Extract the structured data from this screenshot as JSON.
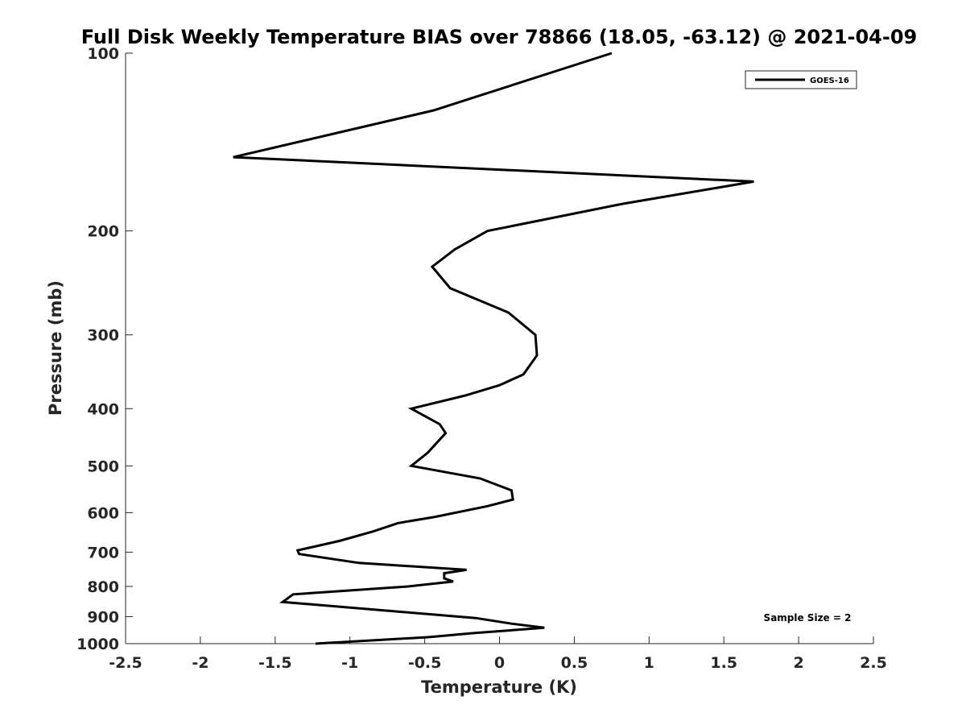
{
  "chart_data": {
    "type": "line",
    "title": "Full Disk Weekly Temperature BIAS over 78866 (18.05, -63.12) @ 2021-04-09",
    "xlabel": "Temperature (K)",
    "ylabel": "Pressure (mb)",
    "xlim": [
      -2.5,
      2.5
    ],
    "ylim": [
      100,
      1000
    ],
    "y_scale": "log",
    "y_reversed": true,
    "x_ticks": [
      -2.5,
      -2,
      -1.5,
      -1,
      -0.5,
      0,
      0.5,
      1,
      1.5,
      2,
      2.5
    ],
    "x_tick_labels": [
      "-2.5",
      "-2",
      "-1.5",
      "-1",
      "-0.5",
      "0",
      "0.5",
      "1",
      "1.5",
      "2",
      "2.5"
    ],
    "y_ticks": [
      100,
      200,
      300,
      400,
      500,
      600,
      700,
      800,
      900,
      1000
    ],
    "y_tick_labels": [
      "100",
      "200",
      "300",
      "400",
      "500",
      "600",
      "700",
      "800",
      "900",
      "1000"
    ],
    "grid": false,
    "legend_position": "top-right",
    "annotation": "Sample Size = 2",
    "series": [
      {
        "name": "GOES-16",
        "color": "#000000",
        "points": [
          {
            "x": 0.75,
            "p": 100
          },
          {
            "x": -0.44,
            "p": 125
          },
          {
            "x": -1.78,
            "p": 150
          },
          {
            "x": 1.7,
            "p": 165
          },
          {
            "x": 0.82,
            "p": 180
          },
          {
            "x": -0.08,
            "p": 200
          },
          {
            "x": -0.3,
            "p": 215
          },
          {
            "x": -0.45,
            "p": 230
          },
          {
            "x": -0.33,
            "p": 250
          },
          {
            "x": 0.06,
            "p": 275
          },
          {
            "x": 0.24,
            "p": 300
          },
          {
            "x": 0.25,
            "p": 325
          },
          {
            "x": 0.16,
            "p": 350
          },
          {
            "x": 0.0,
            "p": 365
          },
          {
            "x": -0.23,
            "p": 380
          },
          {
            "x": -0.59,
            "p": 400
          },
          {
            "x": -0.4,
            "p": 425
          },
          {
            "x": -0.36,
            "p": 440
          },
          {
            "x": -0.43,
            "p": 460
          },
          {
            "x": -0.48,
            "p": 475
          },
          {
            "x": -0.59,
            "p": 500
          },
          {
            "x": -0.13,
            "p": 525
          },
          {
            "x": 0.08,
            "p": 550
          },
          {
            "x": 0.09,
            "p": 570
          },
          {
            "x": -0.08,
            "p": 585
          },
          {
            "x": -0.43,
            "p": 610
          },
          {
            "x": -0.68,
            "p": 625
          },
          {
            "x": -0.84,
            "p": 645
          },
          {
            "x": -1.07,
            "p": 670
          },
          {
            "x": -1.35,
            "p": 695
          },
          {
            "x": -1.34,
            "p": 705
          },
          {
            "x": -0.94,
            "p": 730
          },
          {
            "x": -0.22,
            "p": 750
          },
          {
            "x": -0.37,
            "p": 760
          },
          {
            "x": -0.37,
            "p": 775
          },
          {
            "x": -0.31,
            "p": 785
          },
          {
            "x": -0.61,
            "p": 800
          },
          {
            "x": -1.38,
            "p": 825
          },
          {
            "x": -1.45,
            "p": 850
          },
          {
            "x": -0.62,
            "p": 885
          },
          {
            "x": -0.16,
            "p": 905
          },
          {
            "x": 0.08,
            "p": 925
          },
          {
            "x": 0.3,
            "p": 940
          },
          {
            "x": -0.18,
            "p": 960
          },
          {
            "x": -0.47,
            "p": 975
          },
          {
            "x": -1.23,
            "p": 1000
          }
        ]
      }
    ]
  }
}
